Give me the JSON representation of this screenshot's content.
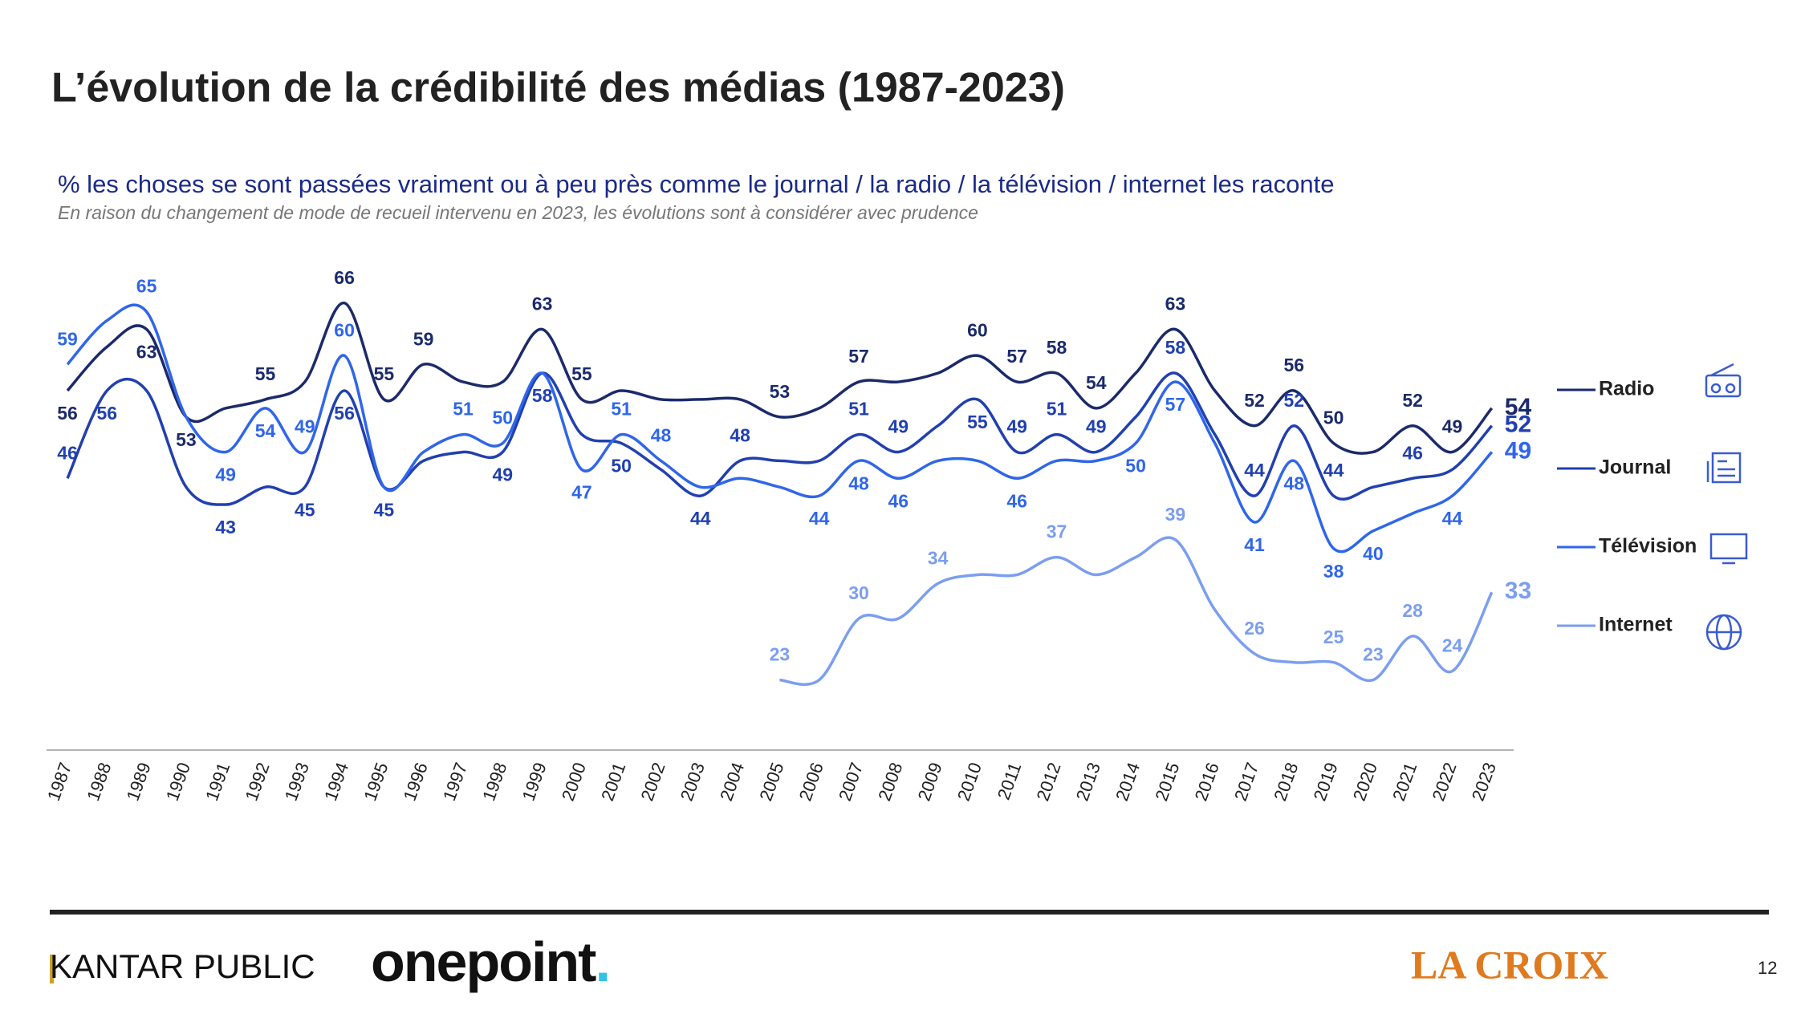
{
  "chart_data": {
    "type": "line",
    "title": "L’évolution de la crédibilité des médias (1987-2023)",
    "subtitle": "% les choses se sont passées vraiment ou à peu près comme le journal / la radio / la télévision / internet les raconte",
    "note": "En raison du changement de mode de recueil intervenu en 2023, les évolutions sont à considérer avec prudence",
    "categories": [
      "1987",
      "1988",
      "1989",
      "1990",
      "1991",
      "1992",
      "1993",
      "1994",
      "1995",
      "1996",
      "1997",
      "1998",
      "1999",
      "2000",
      "2001",
      "2002",
      "2003",
      "2004",
      "2005",
      "2006",
      "2007",
      "2008",
      "2009",
      "2010",
      "2011",
      "2012",
      "2013",
      "2014",
      "2015",
      "2016",
      "2017",
      "2018",
      "2019",
      "2020",
      "2021",
      "2022",
      "2023"
    ],
    "ylim": [
      15,
      70
    ],
    "series": [
      {
        "name": "Radio",
        "color": "#1b2a6b",
        "values": [
          56,
          61,
          63,
          53,
          54,
          55,
          57,
          66,
          55,
          59,
          57,
          57,
          63,
          55,
          56,
          55,
          55,
          55,
          53,
          54,
          57,
          57,
          58,
          60,
          57,
          58,
          54,
          58,
          63,
          56,
          52,
          56,
          50,
          49,
          52,
          49,
          54
        ],
        "value_labels": [
          "56",
          null,
          "63",
          "53",
          null,
          "55",
          null,
          "66",
          "55",
          "59",
          null,
          null,
          "63",
          "55",
          null,
          null,
          null,
          null,
          "53",
          null,
          "57",
          null,
          null,
          "60",
          "57",
          "58",
          "54",
          null,
          "63",
          null,
          "52",
          "56",
          "50",
          null,
          "52",
          "49",
          "54"
        ]
      },
      {
        "name": "Journal",
        "color": "#2140b0",
        "values": [
          46,
          56,
          56,
          45,
          43,
          45,
          45,
          56,
          45,
          48,
          49,
          49,
          58,
          51,
          50,
          47,
          44,
          48,
          48,
          48,
          51,
          49,
          52,
          55,
          49,
          51,
          49,
          53,
          58,
          51,
          44,
          52,
          44,
          45,
          46,
          47,
          52
        ],
        "value_labels": [
          "46",
          "56",
          null,
          null,
          "43",
          null,
          "45",
          "56",
          "45",
          null,
          null,
          "49",
          "58",
          null,
          "50",
          null,
          "44",
          "48",
          null,
          null,
          "51",
          "49",
          null,
          "55",
          "49",
          "51",
          "49",
          null,
          "58",
          null,
          "44",
          "52",
          "44",
          null,
          "46",
          null,
          "52"
        ]
      },
      {
        "name": "Télévision",
        "color": "#2f66ea",
        "values": [
          59,
          64,
          65,
          53,
          49,
          54,
          49,
          60,
          45,
          49,
          51,
          50,
          58,
          47,
          51,
          48,
          45,
          46,
          45,
          44,
          48,
          46,
          48,
          48,
          46,
          48,
          48,
          50,
          57,
          50,
          41,
          48,
          38,
          40,
          42,
          44,
          49
        ],
        "value_labels": [
          "59",
          null,
          "65",
          null,
          "49",
          "54",
          "49",
          "60",
          null,
          null,
          "51",
          "50",
          null,
          "47",
          "51",
          "48",
          null,
          null,
          null,
          "44",
          "48",
          "46",
          null,
          null,
          "46",
          null,
          null,
          "50",
          "57",
          null,
          "41",
          "48",
          "38",
          "40",
          null,
          "44",
          "49"
        ]
      },
      {
        "name": "Internet",
        "color": "#7b9ef0",
        "values": [
          null,
          null,
          null,
          null,
          null,
          null,
          null,
          null,
          null,
          null,
          null,
          null,
          null,
          null,
          null,
          null,
          null,
          null,
          23,
          23,
          30,
          30,
          34,
          35,
          35,
          37,
          35,
          37,
          39,
          31,
          26,
          25,
          25,
          23,
          28,
          24,
          33
        ],
        "value_labels": [
          null,
          null,
          null,
          null,
          null,
          null,
          null,
          null,
          null,
          null,
          null,
          null,
          null,
          null,
          null,
          null,
          null,
          null,
          "23",
          null,
          "30",
          null,
          "34",
          null,
          null,
          "37",
          null,
          null,
          "39",
          null,
          "26",
          null,
          "25",
          "23",
          "28",
          "24",
          "33"
        ]
      }
    ]
  },
  "footer": {
    "brand": "KANTAR PUBLIC",
    "partner": "onepoint",
    "partner_dot": ".",
    "publisher": "LA CROIX",
    "page": "12"
  }
}
